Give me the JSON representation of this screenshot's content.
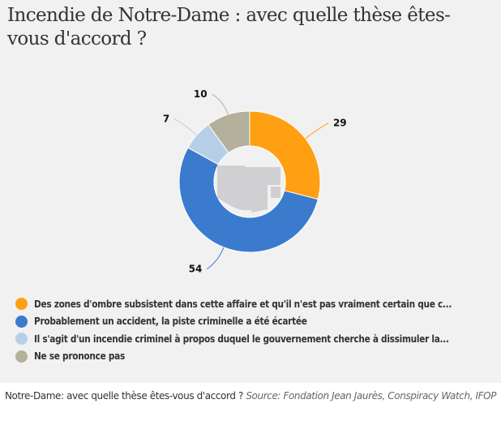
{
  "chart_data": {
    "type": "pie",
    "variant": "donut",
    "title": "Incendie de Notre-Dame : avec quelle thèse êtes-vous d'accord ?",
    "slices": [
      {
        "label": "Des zones d'ombre subsistent dans cette affaire et qu'il n'est pas vraiment certain que c...",
        "value": 29,
        "color": "#ff9f12"
      },
      {
        "label": "Probablement un accident, la piste criminelle a été écartée",
        "value": 54,
        "color": "#3b7bcd"
      },
      {
        "label": "Il s'agit d'un incendie criminel à propos duquel le gouvernement cherche à dissimuler la...",
        "value": 7,
        "color": "#b7cfe6"
      },
      {
        "label": "Ne se prononce pas",
        "value": 10,
        "color": "#b3b09c"
      }
    ],
    "start_angle": "top, clockwise",
    "data_labels": [
      "29",
      "54",
      "7",
      "10"
    ],
    "legend_position": "bottom-left"
  },
  "title_line1": "Incendie de Notre-Dame : avec quelle thèse êtes-",
  "title_line2": "vous d'accord ?",
  "caption": {
    "text": "Notre-Dame: avec quelle thèse êtes-vous d'accord ? ",
    "source": "Source: Fondation Jean Jaurès, Conspiracy Watch, IFOP"
  }
}
